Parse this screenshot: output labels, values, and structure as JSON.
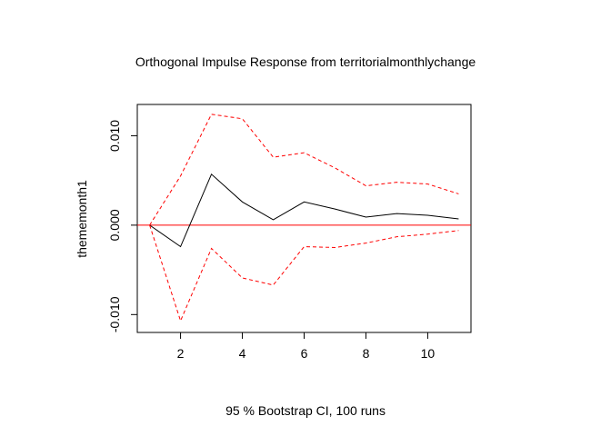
{
  "chart_data": {
    "type": "line",
    "title": "Orthogonal Impulse Response from territorialmonthlychange",
    "xlabel": "95 % Bootstrap CI,  100 runs",
    "ylabel": "thememonth1",
    "xlim": [
      0.6,
      11.4
    ],
    "ylim": [
      -0.012,
      0.0135
    ],
    "x_ticks": [
      2,
      4,
      6,
      8,
      10
    ],
    "y_ticks": [
      -0.01,
      0.0,
      0.01
    ],
    "y_tick_labels": [
      "-0.010",
      "0.000",
      "0.010"
    ],
    "x": [
      1,
      2,
      3,
      4,
      5,
      6,
      7,
      8,
      9,
      10,
      11
    ],
    "series": [
      {
        "name": "",
        "style": "solid",
        "color": "#000000",
        "values": [
          0.0,
          -0.0024,
          0.0057,
          0.0026,
          0.0006,
          0.0026,
          0.0018,
          0.0009,
          0.0013,
          0.0011,
          0.0007
        ]
      },
      {
        "name": "",
        "style": "dashed",
        "color": "#ff0000",
        "values": [
          0.0,
          0.0055,
          0.0124,
          0.0119,
          0.0076,
          0.0081,
          0.0064,
          0.0044,
          0.0048,
          0.0046,
          0.0035
        ]
      },
      {
        "name": "",
        "style": "dashed",
        "color": "#ff0000",
        "values": [
          0.0,
          -0.0107,
          -0.0026,
          -0.0059,
          -0.0067,
          -0.0024,
          -0.0025,
          -0.002,
          -0.0013,
          -0.001,
          -0.0006
        ]
      }
    ],
    "hline": {
      "y": 0.0,
      "color": "#ff0000"
    }
  }
}
